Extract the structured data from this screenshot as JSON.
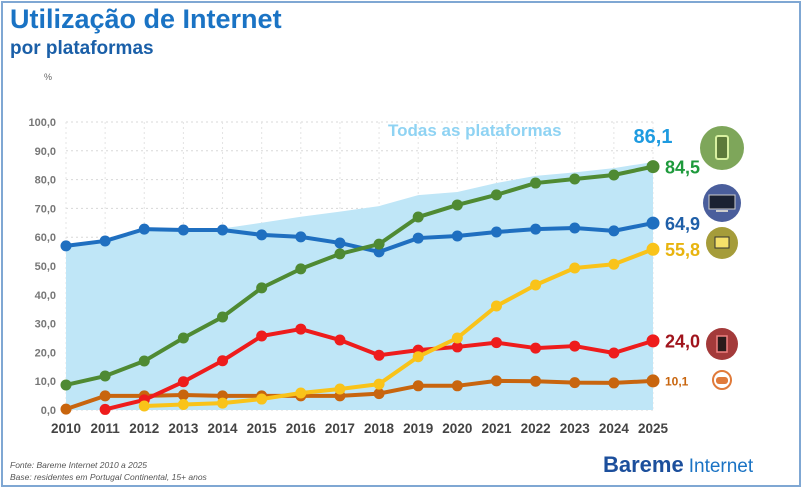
{
  "title": "Utilização de Internet",
  "subtitle": "por plataformas",
  "unit": "%",
  "footer": {
    "source": "Fonte: Bareme Internet 2010 a 2025",
    "base": "Base: residentes em Portugal Continental, 15+ anos",
    "logo_main": "Bareme",
    "logo_sub": "Internet"
  },
  "chart_data": {
    "type": "line",
    "x": [
      2010,
      2011,
      2012,
      2013,
      2014,
      2015,
      2016,
      2017,
      2018,
      2019,
      2020,
      2021,
      2022,
      2023,
      2024,
      2025
    ],
    "ylim": [
      0,
      100
    ],
    "yticks": [
      "0,0",
      "10,0",
      "20,0",
      "30,0",
      "40,0",
      "50,0",
      "60,0",
      "70,0",
      "80,0",
      "90,0",
      "100,0"
    ],
    "grid": true,
    "area": {
      "name": "Todas as plataformas",
      "color": "#bfe6f7",
      "label_color": "#8fd3f3",
      "end_label": "86,1",
      "end_label_color": "#1e9be0",
      "values": [
        57.0,
        58.7,
        62.8,
        62.8,
        63.0,
        65.0,
        67.1,
        68.9,
        70.8,
        74.6,
        75.7,
        78.8,
        81.3,
        82.5,
        84.0,
        86.1
      ]
    },
    "series": [
      {
        "icon": "smartphone-icon",
        "color": "#4f8a33",
        "label_color": "#1e9a3c",
        "icon_bg": "#7ea65a",
        "end_label": "84,5",
        "values": [
          8.7,
          11.8,
          17.0,
          25.0,
          32.3,
          42.4,
          49.0,
          54.2,
          57.6,
          67.0,
          71.2,
          74.7,
          78.8,
          80.2,
          81.6,
          84.5
        ]
      },
      {
        "icon": "computer-icon",
        "color": "#1f6fc0",
        "label_color": "#1f5fa8",
        "icon_bg": "#4a5e9c",
        "end_label": "64,9",
        "values": [
          57.0,
          58.7,
          62.8,
          62.5,
          62.5,
          60.8,
          60.1,
          58.0,
          54.9,
          59.7,
          60.4,
          61.8,
          62.8,
          63.2,
          62.2,
          64.9
        ]
      },
      {
        "icon": "smart-tv-icon",
        "color": "#f9c31a",
        "label_color": "#e8b40f",
        "icon_bg": "#a59c3a",
        "end_label": "55,8",
        "values": [
          null,
          null,
          1.4,
          1.9,
          2.4,
          3.8,
          5.9,
          7.3,
          9.0,
          18.5,
          25.0,
          36.1,
          43.4,
          49.3,
          50.6,
          55.8
        ]
      },
      {
        "icon": "tablet-icon",
        "color": "#ee1c1c",
        "label_color": "#a0141c",
        "icon_bg": "#a33a3a",
        "end_label": "24,0",
        "values": [
          null,
          0.2,
          3.5,
          9.8,
          17.1,
          25.7,
          28.1,
          24.3,
          19.0,
          20.8,
          21.9,
          23.4,
          21.5,
          22.2,
          19.8,
          24.0
        ]
      },
      {
        "icon": "game-console-icon",
        "color": "#c8650e",
        "label_color": "#c8650e",
        "icon_bg": "#e07a3a",
        "end_label": "10,1",
        "values": [
          0.3,
          4.9,
          4.9,
          5.2,
          4.9,
          4.9,
          4.9,
          4.9,
          5.7,
          8.4,
          8.4,
          10.1,
          10.0,
          9.5,
          9.4,
          10.1
        ]
      }
    ]
  }
}
